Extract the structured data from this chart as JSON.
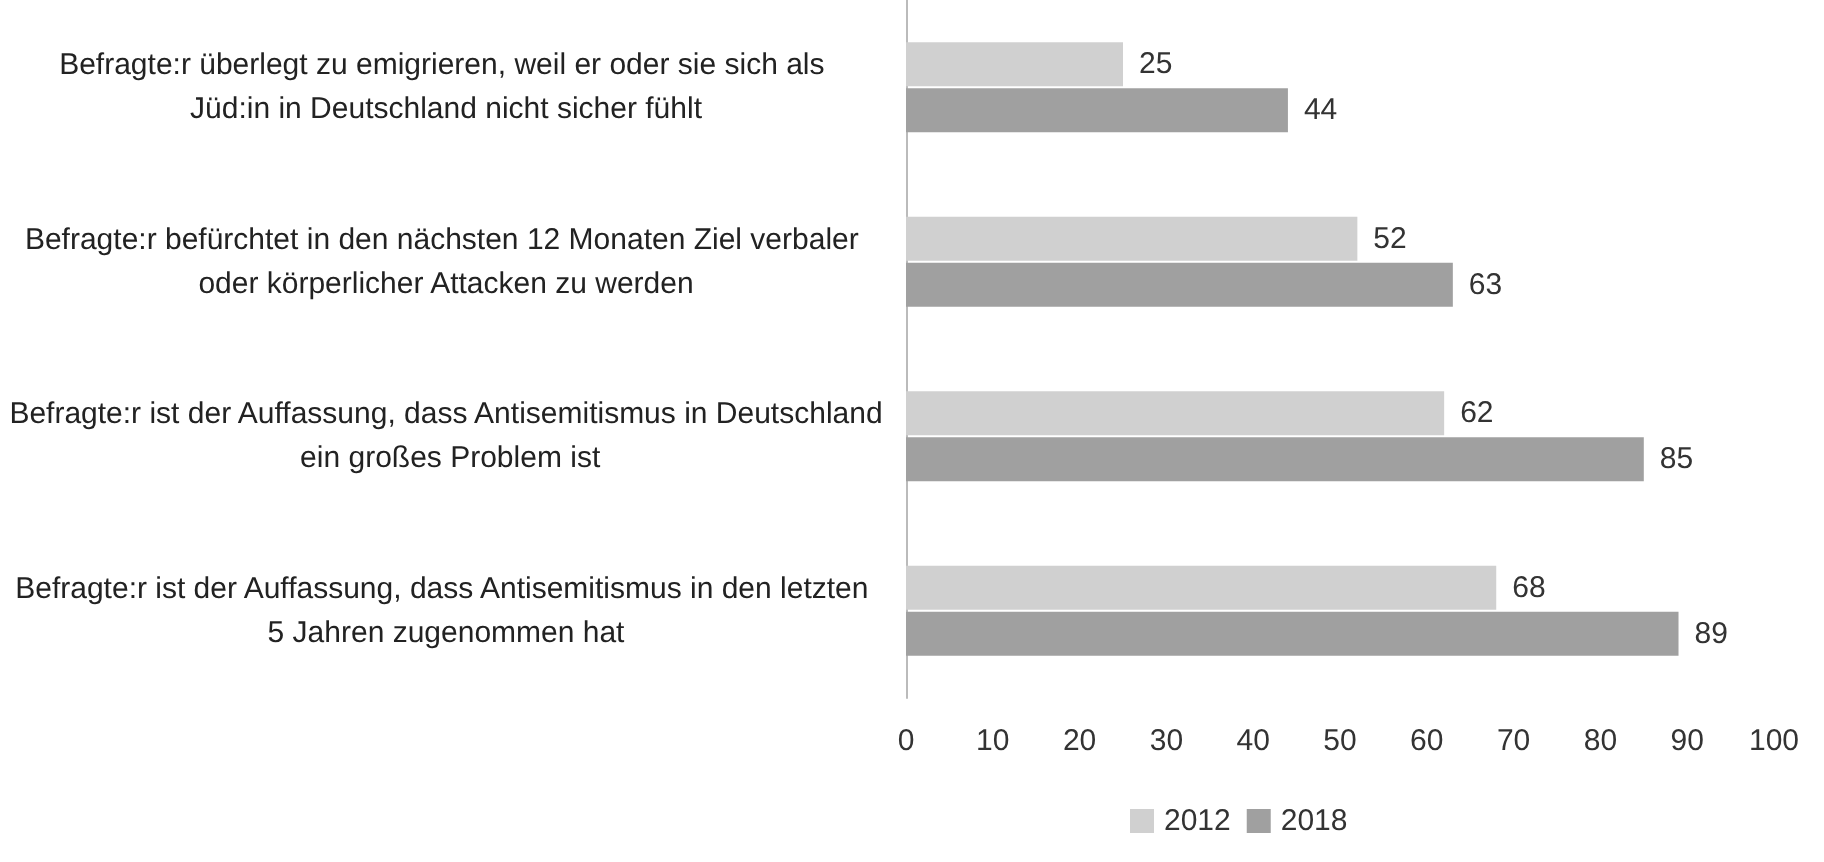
{
  "chart_data": {
    "type": "bar",
    "orientation": "horizontal",
    "categories": [
      "Befragte:r überlegt zu emigrieren, weil er oder sie sich als Jüd:in in Deutschland nicht sicher fühlt",
      "Befragte:r befürchtet in den nächsten 12 Monaten Ziel verbaler oder körperlicher Attacken zu werden",
      "Befragte:r ist der Auffassung, dass Antisemitismus in Deutschland ein großes Problem ist",
      "Befragte:r ist der Auffassung, dass Antisemitismus in den letzten 5 Jahren zugenommen hat"
    ],
    "series": [
      {
        "name": "2012",
        "color": "#d0d0d0",
        "values": [
          25,
          52,
          62,
          68
        ]
      },
      {
        "name": "2018",
        "color": "#a0a0a0",
        "values": [
          44,
          63,
          85,
          89
        ]
      }
    ],
    "xlim": [
      0,
      100
    ],
    "xticks": [
      0,
      10,
      20,
      30,
      40,
      50,
      60,
      70,
      80,
      90,
      100
    ],
    "data_labels": true,
    "grid": false,
    "legend": "bottom"
  }
}
